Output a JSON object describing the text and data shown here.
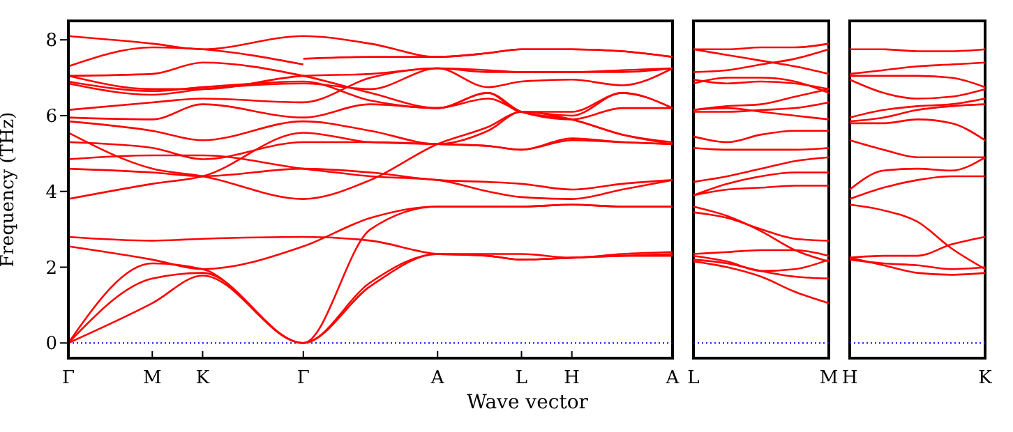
{
  "chart_data": [
    {
      "type": "line",
      "ylabel": "Frequency (THz)",
      "xlabel": "Wave vector",
      "categories": [
        "Γ",
        null,
        null,
        null,
        null,
        "M",
        null,
        null,
        "K",
        null,
        null,
        null,
        null,
        null,
        "Γ",
        null,
        null,
        null,
        null,
        null,
        null,
        null,
        "A",
        null,
        null,
        null,
        null,
        "L",
        null,
        null,
        "H",
        null,
        null,
        null,
        null,
        null,
        "A"
      ],
      "ylim": [
        -0.4,
        8.5
      ],
      "yticks": [
        0,
        2,
        4,
        6,
        8
      ],
      "line_style": "solid",
      "ref_lines": [
        {
          "axis": "y",
          "value": 0,
          "color": "#0000ff",
          "line_style": "dotted"
        }
      ],
      "series": [
        {
          "color": "#ff0000",
          "values": [
            0,
            null,
            null,
            null,
            null,
            1.05,
            null,
            null,
            1.78,
            null,
            null,
            null,
            null,
            null,
            0,
            null,
            null,
            null,
            1.5,
            null,
            null,
            null,
            2.35,
            null,
            null,
            2.3,
            null,
            2.2,
            null,
            null,
            2.25,
            null,
            null,
            2.3,
            null,
            null,
            2.3
          ]
        },
        {
          "color": "#ff0000",
          "values": [
            0,
            null,
            null,
            null,
            null,
            1.7,
            null,
            null,
            1.85,
            null,
            null,
            null,
            null,
            null,
            0,
            null,
            null,
            null,
            1.6,
            null,
            null,
            null,
            2.35,
            null,
            null,
            2.35,
            null,
            2.35,
            null,
            null,
            2.25,
            null,
            null,
            2.35,
            null,
            null,
            2.4
          ]
        },
        {
          "color": "#ff0000",
          "values": [
            0,
            null,
            null,
            null,
            null,
            2.1,
            null,
            null,
            1.95,
            null,
            null,
            null,
            null,
            null,
            0,
            null,
            null,
            null,
            3.0,
            null,
            null,
            null,
            3.6,
            null,
            null,
            3.6,
            null,
            3.6,
            null,
            null,
            3.65,
            null,
            null,
            3.6,
            null,
            null,
            3.6
          ]
        },
        {
          "color": "#ff0000",
          "values": [
            2.55,
            null,
            null,
            null,
            null,
            2.2,
            null,
            null,
            1.95,
            null,
            null,
            null,
            null,
            null,
            2.55,
            null,
            null,
            null,
            3.3,
            null,
            null,
            null,
            3.6,
            null,
            null,
            3.6,
            null,
            3.6,
            null,
            null,
            3.65,
            null,
            null,
            3.6,
            null,
            null,
            3.6
          ]
        },
        {
          "color": "#ff0000",
          "values": [
            2.8,
            null,
            null,
            null,
            null,
            2.7,
            null,
            null,
            2.75,
            null,
            null,
            null,
            null,
            null,
            2.8,
            null,
            null,
            null,
            2.7,
            null,
            null,
            null,
            2.35,
            null,
            null,
            2.3,
            null,
            2.2,
            null,
            null,
            2.25,
            null,
            null,
            2.3,
            null,
            null,
            2.35
          ]
        },
        {
          "color": "#ff0000",
          "values": [
            3.8,
            null,
            null,
            null,
            null,
            4.2,
            null,
            null,
            4.4,
            null,
            null,
            null,
            null,
            null,
            5.55,
            null,
            null,
            null,
            5.3,
            null,
            null,
            null,
            5.25,
            null,
            null,
            5.2,
            null,
            5.1,
            null,
            null,
            5.4,
            null,
            null,
            5.3,
            null,
            null,
            5.25
          ]
        },
        {
          "color": "#ff0000",
          "values": [
            5.55,
            null,
            null,
            null,
            null,
            4.6,
            null,
            null,
            4.4,
            null,
            null,
            null,
            null,
            null,
            3.8,
            null,
            null,
            null,
            4.3,
            null,
            null,
            null,
            5.25,
            null,
            null,
            5.7,
            null,
            6.1,
            null,
            null,
            6.0,
            null,
            null,
            6.6,
            null,
            null,
            6.2
          ]
        },
        {
          "color": "#ff0000",
          "values": [
            4.6,
            null,
            null,
            null,
            null,
            4.5,
            null,
            null,
            4.4,
            null,
            null,
            null,
            null,
            null,
            4.6,
            null,
            null,
            null,
            4.5,
            null,
            null,
            null,
            4.3,
            null,
            null,
            4.25,
            null,
            4.2,
            null,
            null,
            4.05,
            null,
            null,
            4.2,
            null,
            null,
            4.3
          ]
        },
        {
          "color": "#ff0000",
          "values": [
            4.85,
            null,
            null,
            null,
            null,
            4.95,
            null,
            null,
            4.95,
            null,
            null,
            null,
            null,
            null,
            4.6,
            null,
            null,
            null,
            4.4,
            null,
            null,
            null,
            4.3,
            null,
            null,
            4.0,
            null,
            3.85,
            null,
            null,
            3.8,
            null,
            null,
            4.05,
            null,
            null,
            4.3
          ]
        },
        {
          "color": "#ff0000",
          "values": [
            5.3,
            null,
            null,
            null,
            null,
            5.15,
            null,
            null,
            4.85,
            null,
            null,
            null,
            null,
            null,
            5.3,
            null,
            null,
            null,
            5.3,
            null,
            null,
            null,
            5.25,
            null,
            null,
            5.2,
            null,
            5.1,
            null,
            null,
            5.35,
            null,
            null,
            5.3,
            null,
            null,
            5.25
          ]
        },
        {
          "color": "#ff0000",
          "values": [
            5.85,
            null,
            null,
            null,
            null,
            5.6,
            null,
            null,
            5.35,
            null,
            null,
            null,
            null,
            null,
            5.85,
            null,
            null,
            null,
            5.6,
            null,
            null,
            null,
            5.25,
            null,
            null,
            5.6,
            null,
            6.1,
            null,
            null,
            5.9,
            null,
            null,
            5.5,
            null,
            null,
            5.25
          ]
        },
        {
          "color": "#ff0000",
          "values": [
            5.95,
            null,
            null,
            null,
            null,
            5.9,
            null,
            null,
            6.3,
            null,
            null,
            null,
            null,
            null,
            5.95,
            null,
            null,
            null,
            6.3,
            null,
            null,
            null,
            6.2,
            null,
            null,
            6.6,
            null,
            6.1,
            null,
            null,
            5.9,
            null,
            null,
            5.5,
            null,
            null,
            5.3
          ]
        },
        {
          "color": "#ff0000",
          "values": [
            6.15,
            null,
            null,
            null,
            null,
            6.35,
            null,
            null,
            6.45,
            null,
            null,
            null,
            null,
            null,
            6.35,
            null,
            null,
            null,
            7.0,
            null,
            null,
            null,
            7.25,
            null,
            null,
            7.2,
            null,
            7.15,
            null,
            null,
            7.15,
            null,
            null,
            7.2,
            null,
            null,
            7.25
          ]
        },
        {
          "color": "#ff0000",
          "values": [
            6.85,
            null,
            null,
            null,
            null,
            6.55,
            null,
            null,
            6.7,
            null,
            null,
            null,
            null,
            null,
            6.85,
            null,
            null,
            null,
            6.7,
            null,
            null,
            null,
            7.25,
            null,
            null,
            6.75,
            null,
            6.9,
            null,
            null,
            6.95,
            null,
            null,
            6.8,
            null,
            null,
            7.25
          ]
        },
        {
          "color": "#ff0000",
          "values": [
            6.9,
            null,
            null,
            null,
            null,
            6.65,
            null,
            null,
            6.75,
            null,
            null,
            null,
            null,
            null,
            6.9,
            null,
            null,
            null,
            6.4,
            null,
            null,
            null,
            6.2,
            null,
            null,
            6.6,
            null,
            6.1,
            null,
            null,
            6.1,
            null,
            null,
            6.6,
            null,
            null,
            6.2
          ]
        },
        {
          "color": "#ff0000",
          "values": [
            7.05,
            null,
            null,
            null,
            null,
            6.7,
            null,
            null,
            6.7,
            null,
            null,
            null,
            null,
            null,
            7.05,
            null,
            null,
            null,
            7.1,
            null,
            null,
            null,
            7.25,
            null,
            null,
            7.15,
            null,
            7.15,
            null,
            null,
            7.15,
            null,
            null,
            7.15,
            null,
            null,
            7.25
          ]
        },
        {
          "color": "#ff0000",
          "values": [
            7.05,
            null,
            null,
            null,
            null,
            7.1,
            null,
            null,
            7.4,
            null,
            null,
            null,
            null,
            null,
            7.05,
            null,
            null,
            null,
            6.6,
            null,
            null,
            null,
            6.2,
            null,
            null,
            6.45,
            null,
            6.1,
            null,
            null,
            5.9,
            null,
            null,
            6.2,
            null,
            null,
            6.2
          ]
        },
        {
          "color": "#ff0000",
          "values": [
            7.3,
            null,
            null,
            null,
            null,
            7.8,
            null,
            null,
            7.75,
            null,
            null,
            null,
            null,
            null,
            7.35,
            null,
            null,
            null,
            null,
            null,
            null,
            null,
            null,
            null,
            null,
            null,
            null,
            null,
            null,
            null,
            null,
            null,
            null,
            null,
            null,
            null,
            null
          ]
        },
        {
          "color": "#ff0000",
          "values": [
            8.1,
            null,
            null,
            null,
            null,
            7.9,
            null,
            null,
            7.75,
            null,
            null,
            null,
            null,
            null,
            8.1,
            null,
            null,
            null,
            7.9,
            null,
            null,
            null,
            7.55,
            null,
            null,
            7.65,
            null,
            7.75,
            null,
            null,
            7.75,
            null,
            null,
            7.7,
            null,
            null,
            7.55
          ]
        },
        {
          "color": "#ff0000",
          "values": [
            null,
            null,
            null,
            null,
            null,
            null,
            null,
            null,
            null,
            null,
            null,
            null,
            null,
            null,
            7.5,
            null,
            null,
            null,
            7.55,
            null,
            null,
            null,
            7.55,
            null,
            null,
            7.65,
            null,
            7.75,
            null,
            null,
            7.75,
            null,
            null,
            7.7,
            null,
            null,
            7.55
          ]
        }
      ]
    },
    {
      "type": "line",
      "categories": [
        "L",
        null,
        null,
        null,
        "M"
      ],
      "ylim": [
        -0.4,
        8.5
      ],
      "yticks": [
        0,
        2,
        4,
        6,
        8
      ],
      "tick_labels": "x",
      "line_style": "solid",
      "ref_lines": [
        {
          "axis": "y",
          "value": 0,
          "color": "#0000ff",
          "line_style": "dotted"
        }
      ],
      "series": [
        {
          "color": "#ff0000",
          "values": [
            7.75,
            7.75,
            7.8,
            7.8,
            7.9
          ]
        },
        {
          "color": "#ff0000",
          "values": [
            7.75,
            7.6,
            7.45,
            7.3,
            7.1
          ]
        },
        {
          "color": "#ff0000",
          "values": [
            7.15,
            7.2,
            7.35,
            7.5,
            7.75
          ]
        },
        {
          "color": "#ff0000",
          "values": [
            6.95,
            6.85,
            6.9,
            6.85,
            6.7
          ]
        },
        {
          "color": "#ff0000",
          "values": [
            6.85,
            7.0,
            7.0,
            6.9,
            6.6
          ]
        },
        {
          "color": "#ff0000",
          "values": [
            6.15,
            6.25,
            6.3,
            6.5,
            6.7
          ]
        },
        {
          "color": "#ff0000",
          "values": [
            6.1,
            6.1,
            6.15,
            6.2,
            6.35
          ]
        },
        {
          "color": "#ff0000",
          "values": [
            6.15,
            6.2,
            6.1,
            6.0,
            5.9
          ]
        },
        {
          "color": "#ff0000",
          "values": [
            5.45,
            5.3,
            5.5,
            5.6,
            5.6
          ]
        },
        {
          "color": "#ff0000",
          "values": [
            5.15,
            5.1,
            5.1,
            5.1,
            5.15
          ]
        },
        {
          "color": "#ff0000",
          "values": [
            4.25,
            4.4,
            4.6,
            4.8,
            4.9
          ]
        },
        {
          "color": "#ff0000",
          "values": [
            3.9,
            4.2,
            4.4,
            4.5,
            4.5
          ]
        },
        {
          "color": "#ff0000",
          "values": [
            3.9,
            4.05,
            4.1,
            4.15,
            4.15
          ]
        },
        {
          "color": "#ff0000",
          "values": [
            3.6,
            3.35,
            2.95,
            2.45,
            2.15
          ]
        },
        {
          "color": "#ff0000",
          "values": [
            3.45,
            3.3,
            3.0,
            2.75,
            2.7
          ]
        },
        {
          "color": "#ff0000",
          "values": [
            2.35,
            2.4,
            2.45,
            2.45,
            2.3
          ]
        },
        {
          "color": "#ff0000",
          "values": [
            2.3,
            2.15,
            1.9,
            1.95,
            2.2
          ]
        },
        {
          "color": "#ff0000",
          "values": [
            2.2,
            2.1,
            1.9,
            1.75,
            1.7
          ]
        },
        {
          "color": "#ff0000",
          "values": [
            2.15,
            2.0,
            1.75,
            1.35,
            1.05
          ]
        }
      ]
    },
    {
      "type": "line",
      "categories": [
        "H",
        null,
        null,
        null,
        "K"
      ],
      "ylim": [
        -0.4,
        8.5
      ],
      "yticks": [
        0,
        2,
        4,
        6,
        8
      ],
      "tick_labels": "x",
      "line_style": "solid",
      "ref_lines": [
        {
          "axis": "y",
          "value": 0,
          "color": "#0000ff",
          "line_style": "dotted"
        }
      ],
      "series": [
        {
          "color": "#ff0000",
          "values": [
            7.75,
            7.75,
            7.7,
            7.7,
            7.75
          ]
        },
        {
          "color": "#ff0000",
          "values": [
            7.1,
            7.2,
            7.3,
            7.35,
            7.4
          ]
        },
        {
          "color": "#ff0000",
          "values": [
            7.05,
            7.05,
            7.05,
            7.0,
            6.75
          ]
        },
        {
          "color": "#ff0000",
          "values": [
            6.95,
            6.6,
            6.45,
            6.5,
            6.7
          ]
        },
        {
          "color": "#ff0000",
          "values": [
            5.95,
            6.15,
            6.25,
            6.3,
            6.45
          ]
        },
        {
          "color": "#ff0000",
          "values": [
            5.85,
            5.95,
            6.15,
            6.25,
            6.3
          ]
        },
        {
          "color": "#ff0000",
          "values": [
            5.8,
            5.8,
            5.9,
            5.8,
            5.35
          ]
        },
        {
          "color": "#ff0000",
          "values": [
            5.35,
            5.1,
            4.9,
            4.9,
            4.9
          ]
        },
        {
          "color": "#ff0000",
          "values": [
            4.05,
            4.55,
            4.6,
            4.55,
            4.9
          ]
        },
        {
          "color": "#ff0000",
          "values": [
            3.8,
            4.1,
            4.3,
            4.4,
            4.4
          ]
        },
        {
          "color": "#ff0000",
          "values": [
            3.65,
            3.5,
            3.2,
            2.5,
            1.95
          ]
        },
        {
          "color": "#ff0000",
          "values": [
            2.25,
            2.3,
            2.3,
            2.6,
            2.8
          ]
        },
        {
          "color": "#ff0000",
          "values": [
            2.2,
            2.1,
            2.05,
            1.95,
            2.0
          ]
        },
        {
          "color": "#ff0000",
          "values": [
            2.25,
            2.05,
            1.85,
            1.8,
            1.85
          ]
        }
      ]
    }
  ]
}
